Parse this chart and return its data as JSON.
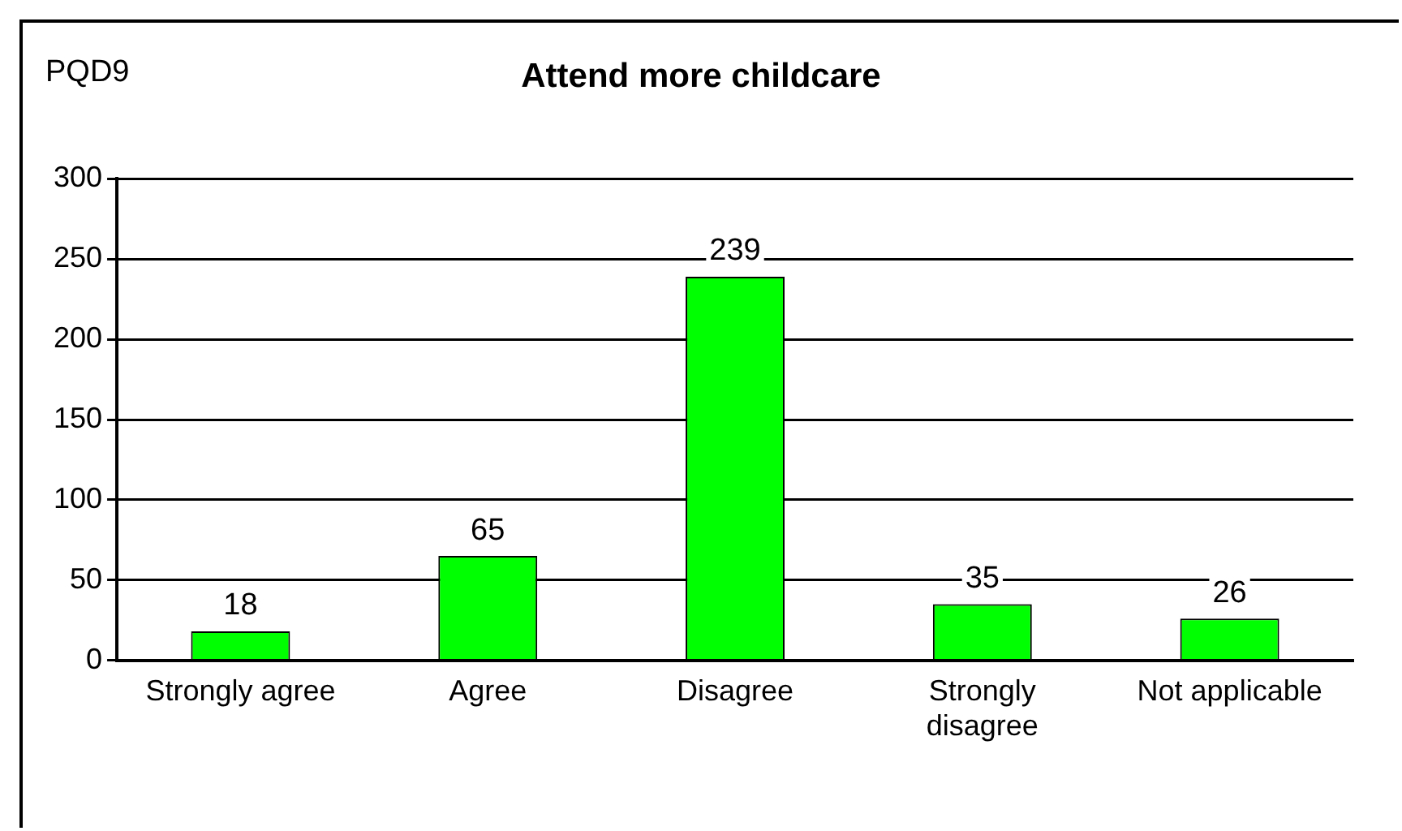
{
  "chart_data": {
    "type": "bar",
    "title": "Attend more childcare",
    "annotations": [
      "PQD9"
    ],
    "categories": [
      "Strongly agree",
      "Agree",
      "Disagree",
      "Strongly disagree",
      "Not applicable"
    ],
    "values": [
      18,
      65,
      239,
      35,
      26
    ],
    "color": "#00ff00",
    "ylim": [
      0,
      300
    ],
    "yticks": [
      0,
      50,
      100,
      150,
      200,
      250,
      300
    ],
    "grid": "y",
    "data_labels": true
  }
}
